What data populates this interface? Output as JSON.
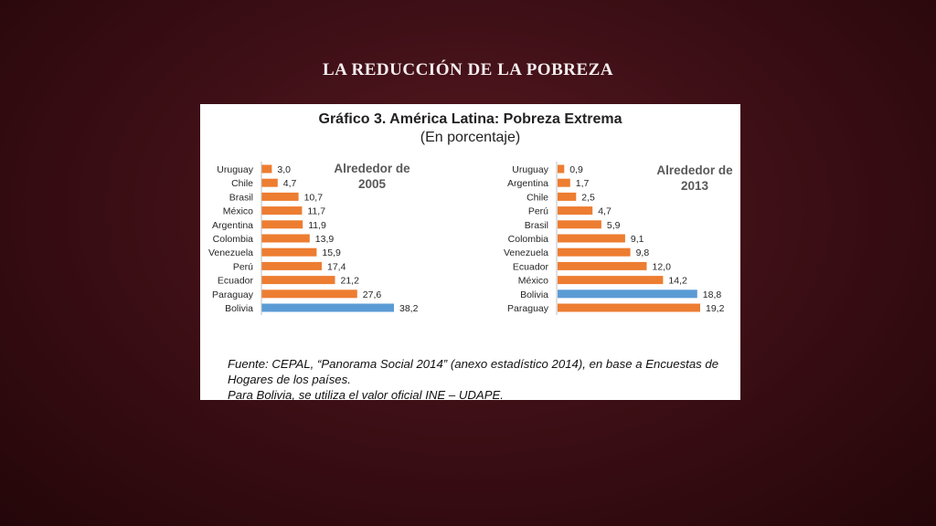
{
  "slide": {
    "title": "LA REDUCCIÓN DE LA POBREZA"
  },
  "figure": {
    "title": "Gráfico 3.  América Latina: Pobreza Extrema",
    "subtitle": "(En porcentaje)",
    "source_lines": [
      "Fuente: CEPAL, “Panorama Social 2014” (anexo estadístico 2014), en base a Encuestas de",
      "Hogares de los países.",
      "Para Bolivia, se utiliza el valor oficial INE – UDAPE."
    ]
  },
  "colors": {
    "bar_default": "#ed7d31",
    "bar_highlight": "#5b9bd5"
  },
  "chart_data": [
    {
      "type": "bar",
      "orientation": "horizontal",
      "title": "Alrededor de 2005",
      "categories": [
        "Uruguay",
        "Chile",
        "Brasil",
        "México",
        "Argentina",
        "Colombia",
        "Venezuela",
        "Perú",
        "Ecuador",
        "Paraguay",
        "Bolivia"
      ],
      "values": [
        3.0,
        4.7,
        10.7,
        11.7,
        11.9,
        13.9,
        15.9,
        17.4,
        21.2,
        27.6,
        38.2
      ],
      "value_labels": [
        "3,0",
        "4,7",
        "10,7",
        "11,7",
        "11,9",
        "13,9",
        "15,9",
        "17,4",
        "21,2",
        "27,6",
        "38,2"
      ],
      "highlight": "Bolivia"
    },
    {
      "type": "bar",
      "orientation": "horizontal",
      "title": "Alrededor de 2013",
      "categories": [
        "Uruguay",
        "Argentina",
        "Chile",
        "Perú",
        "Brasil",
        "Colombia",
        "Venezuela",
        "Ecuador",
        "México",
        "Bolivia",
        "Paraguay"
      ],
      "values": [
        0.9,
        1.7,
        2.5,
        4.7,
        5.9,
        9.1,
        9.8,
        12.0,
        14.2,
        18.8,
        19.2
      ],
      "value_labels": [
        "0,9",
        "1,7",
        "2,5",
        "4,7",
        "5,9",
        "9,1",
        "9,8",
        "12,0",
        "14,2",
        "18,8",
        "19,2"
      ],
      "highlight": "Bolivia"
    }
  ]
}
